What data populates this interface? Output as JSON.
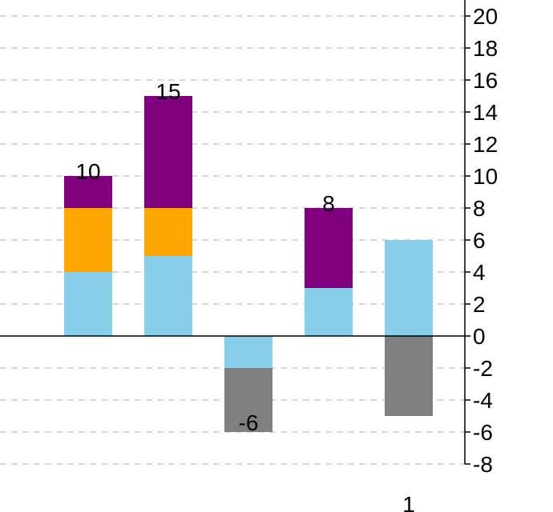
{
  "chart_data": {
    "type": "bar",
    "stacked": true,
    "categories": [
      "",
      "",
      "",
      "",
      "1"
    ],
    "series": [
      {
        "color": "#87CEEB",
        "values": [
          4,
          5,
          -2,
          3,
          6
        ]
      },
      {
        "color": "#FFA500",
        "values": [
          4,
          3,
          0,
          0,
          0
        ]
      },
      {
        "color": "#800080",
        "values": [
          2,
          7,
          0,
          5,
          0
        ]
      },
      {
        "color": "#808080",
        "values": [
          0,
          0,
          -4,
          0,
          -5
        ]
      }
    ],
    "totals_labels": [
      "10",
      "15",
      "-6",
      "8",
      ""
    ],
    "ylim": [
      -8,
      20
    ],
    "yticks": [
      "20",
      "18",
      "16",
      "14",
      "12",
      "10",
      "8",
      "6",
      "4",
      "2",
      "0",
      "-2",
      "-4",
      "-6",
      "-8"
    ],
    "y_axis_side": "right",
    "grid": true,
    "title": "",
    "xlabel": "",
    "ylabel": ""
  }
}
